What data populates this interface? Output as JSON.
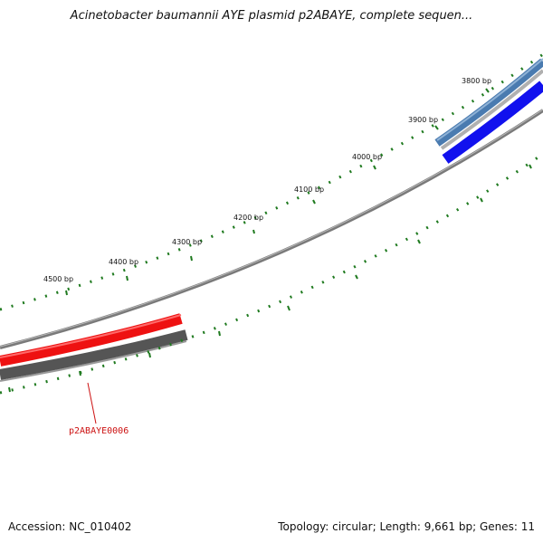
{
  "title": "Acinetobacter baumannii AYE plasmid p2ABAYE, complete sequen...",
  "footer": {
    "accession": "Accession: NC_010402",
    "summary": "Topology: circular; Length: 9,661 bp; Genes: 11"
  },
  "map": {
    "ruler_labels": [
      "3800 bp",
      "3900 bp",
      "4000 bp",
      "4100 bp",
      "4200 bp",
      "4300 bp",
      "4400 bp",
      "4500 bp"
    ],
    "gene_label": "p2ABAYE0006",
    "colors": {
      "tick": "#1f7a1f",
      "backbone": "#808080",
      "gene_red": "#ee1111",
      "gene_blue": "#1111ee",
      "gene_dark": "#555555",
      "gene_steel": "#4a7bb0",
      "label_red": "#cc1111"
    }
  }
}
